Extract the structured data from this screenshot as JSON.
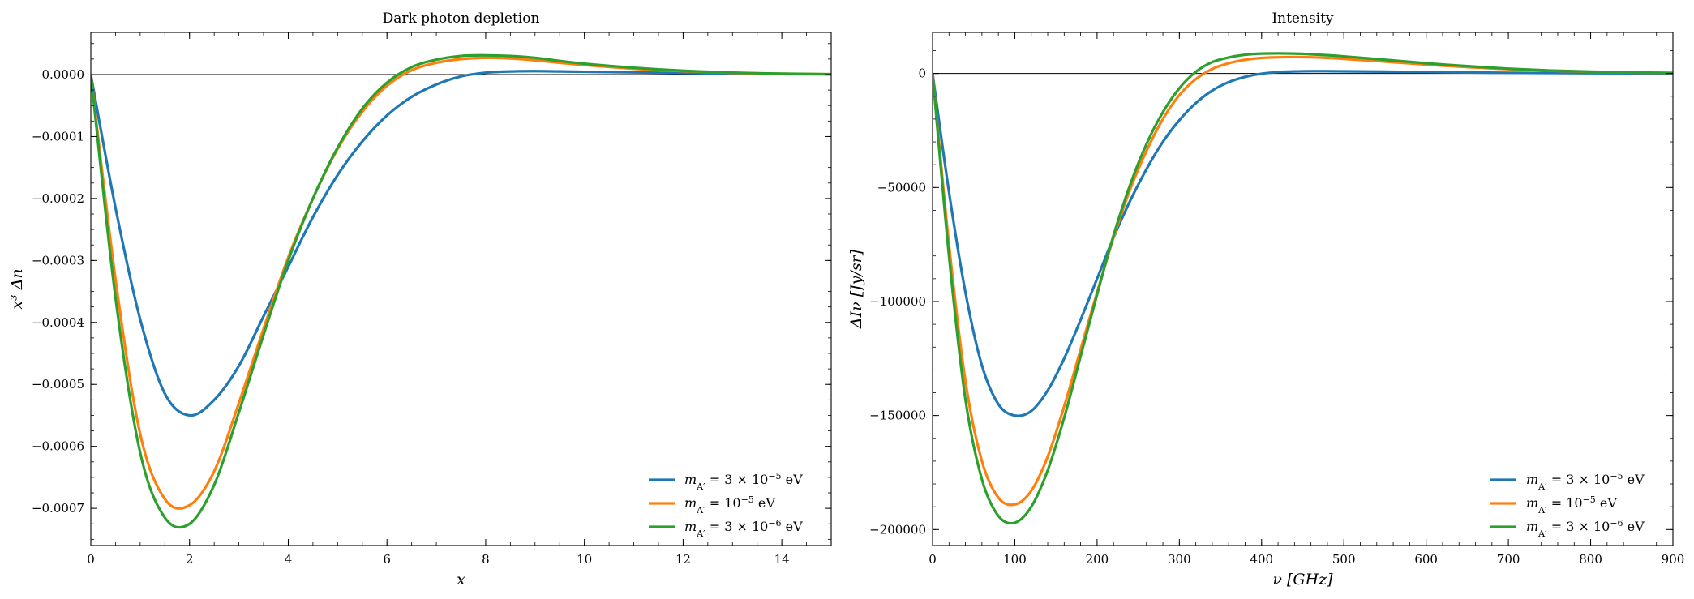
{
  "chart_data": [
    {
      "type": "line",
      "title": "Dark photon depletion",
      "xlabel": "x",
      "ylabel": "x³ Δn",
      "xlim": [
        0,
        15
      ],
      "ylim": [
        -0.00076,
        6.8e-05
      ],
      "grid": false,
      "legend_position": "bottom-right",
      "zero_line": true,
      "xticks": [
        0,
        2,
        4,
        6,
        8,
        10,
        12,
        14
      ],
      "xtick_labels": [
        "0",
        "2",
        "4",
        "6",
        "8",
        "10",
        "12",
        "14"
      ],
      "yticks": [
        0.0,
        -0.0001,
        -0.0002,
        -0.0003,
        -0.0004,
        -0.0005,
        -0.0006,
        -0.0007
      ],
      "ytick_labels": [
        "0.0000",
        "−0.0001",
        "−0.0002",
        "−0.0003",
        "−0.0004",
        "−0.0005",
        "−0.0006",
        "−0.0007"
      ],
      "x": [
        0,
        0.5,
        1,
        1.5,
        2,
        2.5,
        3,
        3.5,
        4,
        4.5,
        5,
        5.5,
        6,
        6.5,
        7,
        7.5,
        8,
        8.5,
        9,
        9.5,
        10,
        11,
        12,
        13,
        14,
        15
      ],
      "series": [
        {
          "name_parts": [
            {
              "t": "m",
              "i": true
            },
            {
              "t": "A′",
              "sub": true
            },
            {
              "t": " = 3 × 10"
            },
            {
              "t": "−5",
              "sup": true
            },
            {
              "t": " eV"
            }
          ],
          "color": "#1f77b4",
          "values": [
            0,
            -0.000215,
            -0.000395,
            -0.000515,
            -0.00055,
            -0.000525,
            -0.00047,
            -0.00039,
            -0.00031,
            -0.00023,
            -0.000162,
            -0.000108,
            -6.6e-05,
            -3.6e-05,
            -1.6e-05,
            -3e-06,
            3e-06,
            5e-06,
            5.5e-06,
            5e-06,
            4.5e-06,
            3.5e-06,
            2.5e-06,
            1.5e-06,
            8e-07,
            3e-07
          ]
        },
        {
          "name_parts": [
            {
              "t": "m",
              "i": true
            },
            {
              "t": "A′",
              "sub": true
            },
            {
              "t": " = 10"
            },
            {
              "t": "−5",
              "sup": true
            },
            {
              "t": " eV"
            }
          ],
          "color": "#ff7f0e",
          "values": [
            0,
            -0.00033,
            -0.00058,
            -0.000685,
            -0.000695,
            -0.00064,
            -0.00053,
            -0.00041,
            -0.000295,
            -0.0002,
            -0.00012,
            -6e-05,
            -1.8e-05,
            7e-06,
            1.9e-05,
            2.5e-05,
            2.7e-05,
            2.6e-05,
            2.3e-05,
            1.9e-05,
            1.55e-05,
            9.5e-06,
            5.5e-06,
            2.8e-06,
            1.3e-06,
            5e-07
          ]
        },
        {
          "name_parts": [
            {
              "t": "m",
              "i": true
            },
            {
              "t": "A′",
              "sub": true
            },
            {
              "t": " = 3 × 10"
            },
            {
              "t": "−6",
              "sup": true
            },
            {
              "t": " eV"
            }
          ],
          "color": "#2ca02c",
          "values": [
            0,
            -0.00036,
            -0.00061,
            -0.000715,
            -0.000725,
            -0.000662,
            -0.000545,
            -0.00042,
            -0.0003,
            -0.0002,
            -0.000118,
            -5.5e-05,
            -1.3e-05,
            1.2e-05,
            2.4e-05,
            3e-05,
            3.1e-05,
            3e-05,
            2.7e-05,
            2.2e-05,
            1.75e-05,
            1.1e-05,
            6.2e-06,
            3.2e-06,
            1.5e-06,
            6e-07
          ]
        }
      ]
    },
    {
      "type": "line",
      "title": "Intensity",
      "xlabel": "ν [GHz]",
      "ylabel": "ΔIν [Jy/sr]",
      "xlim": [
        0,
        900
      ],
      "ylim": [
        -207000,
        18000
      ],
      "grid": false,
      "legend_position": "bottom-right",
      "zero_line": true,
      "xticks": [
        0,
        100,
        200,
        300,
        400,
        500,
        600,
        700,
        800,
        900
      ],
      "xtick_labels": [
        "0",
        "100",
        "200",
        "300",
        "400",
        "500",
        "600",
        "700",
        "800",
        "900"
      ],
      "yticks": [
        0,
        -50000,
        -100000,
        -150000,
        -200000
      ],
      "ytick_labels": [
        "0",
        "−50000",
        "−100000",
        "−150000",
        "−200000"
      ],
      "x": [
        0,
        20,
        40,
        60,
        80,
        100,
        120,
        140,
        160,
        180,
        200,
        220,
        240,
        260,
        280,
        300,
        320,
        340,
        360,
        380,
        400,
        420,
        440,
        460,
        480,
        500,
        550,
        600,
        650,
        700,
        750,
        800,
        850,
        900
      ],
      "series": [
        {
          "name_parts": [
            {
              "t": "m",
              "i": true
            },
            {
              "t": "A′",
              "sub": true
            },
            {
              "t": " = 3 × 10"
            },
            {
              "t": "−5",
              "sup": true
            },
            {
              "t": " eV"
            }
          ],
          "color": "#1f77b4",
          "values": [
            0,
            -52000,
            -96000,
            -128000,
            -145000,
            -150000,
            -148000,
            -139000,
            -125000,
            -108000,
            -90000,
            -72000,
            -56000,
            -42000,
            -30000,
            -20500,
            -13000,
            -7500,
            -3800,
            -1500,
            -100,
            600,
            900,
            1000,
            1000,
            950,
            800,
            600,
            450,
            300,
            200,
            130,
            80,
            50
          ]
        },
        {
          "name_parts": [
            {
              "t": "m",
              "i": true
            },
            {
              "t": "A′",
              "sub": true
            },
            {
              "t": " = 10"
            },
            {
              "t": "−5",
              "sup": true
            },
            {
              "t": " eV"
            }
          ],
          "color": "#ff7f0e",
          "values": [
            0,
            -75000,
            -135000,
            -170000,
            -186000,
            -189000,
            -183000,
            -168000,
            -146000,
            -121000,
            -96000,
            -72000,
            -51000,
            -34000,
            -20000,
            -9500,
            -2500,
            2000,
            4500,
            6000,
            6800,
            7100,
            7200,
            7100,
            6800,
            6400,
            5200,
            3900,
            2800,
            1900,
            1200,
            700,
            400,
            200
          ]
        },
        {
          "name_parts": [
            {
              "t": "m",
              "i": true
            },
            {
              "t": "A′",
              "sub": true
            },
            {
              "t": " = 3 × 10"
            },
            {
              "t": "−6",
              "sup": true
            },
            {
              "t": " eV"
            }
          ],
          "color": "#2ca02c",
          "values": [
            0,
            -80000,
            -143000,
            -178000,
            -194000,
            -197000,
            -190000,
            -174000,
            -151000,
            -124000,
            -97000,
            -71000,
            -49000,
            -31000,
            -17000,
            -6500,
            700,
            5000,
            7000,
            8200,
            8700,
            8800,
            8700,
            8400,
            8000,
            7500,
            6000,
            4500,
            3200,
            2100,
            1300,
            800,
            450,
            250
          ]
        }
      ]
    }
  ]
}
